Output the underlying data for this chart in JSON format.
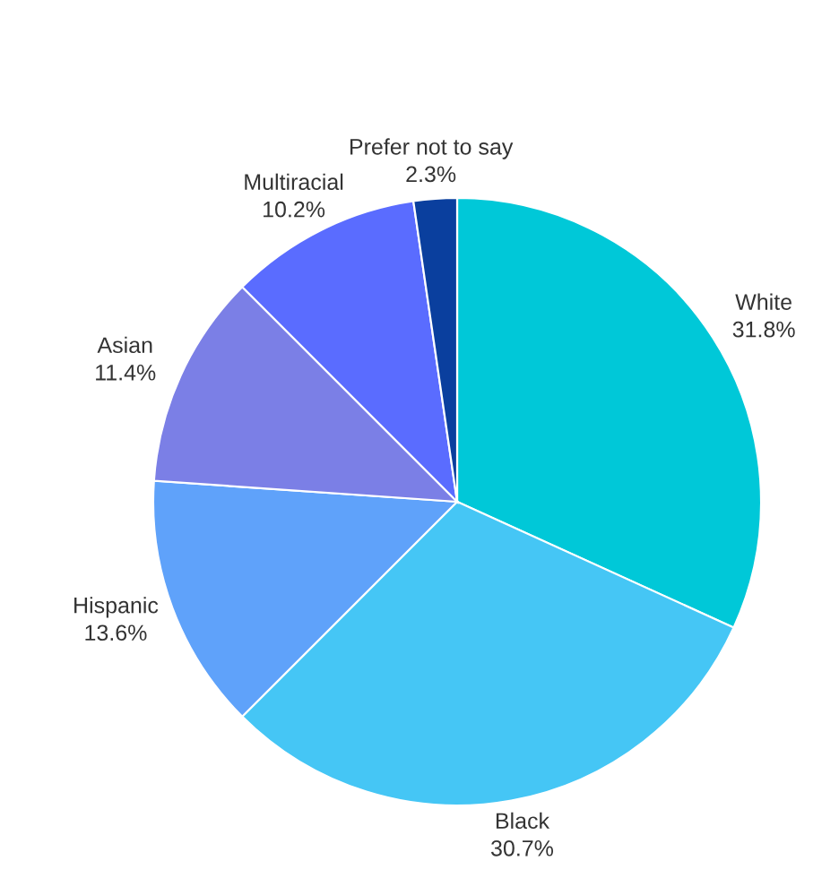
{
  "chart_data": {
    "type": "pie",
    "categories": [
      "White",
      "Black",
      "Hispanic",
      "Asian",
      "Multiracial",
      "Prefer not to say"
    ],
    "values": [
      31.8,
      30.7,
      13.6,
      11.4,
      10.2,
      2.3
    ],
    "value_labels": [
      "31.8%",
      "30.7%",
      "13.6%",
      "11.4%",
      "10.2%",
      "2.3%"
    ],
    "colors": [
      "#00c8d8",
      "#45c6f5",
      "#5fa2fa",
      "#7b7fe6",
      "#5a6cff",
      "#0a3f9e"
    ]
  }
}
